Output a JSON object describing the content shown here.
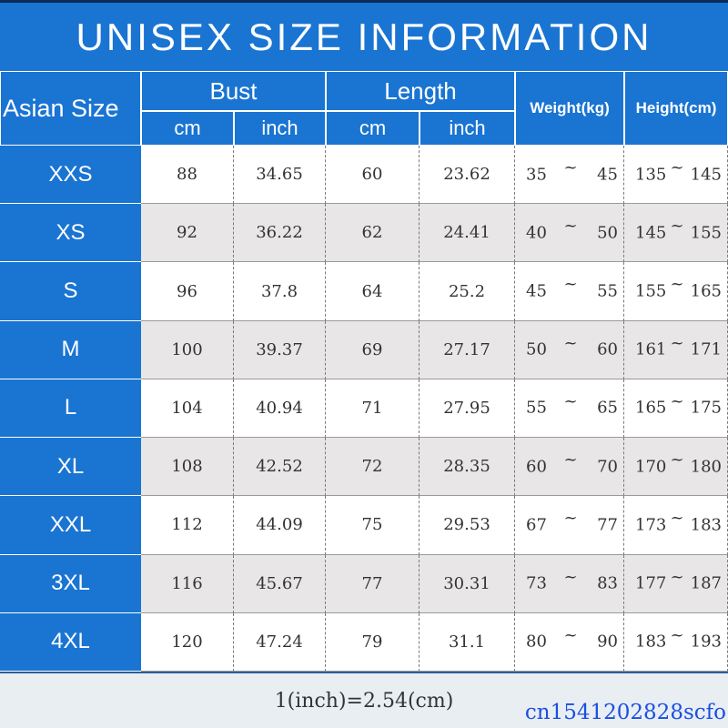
{
  "header": {
    "title": "UNISEX SIZE INFORMATION"
  },
  "table": {
    "size_header": "Asian Size",
    "groups": [
      {
        "label": "Bust",
        "units": [
          "cm",
          "inch"
        ]
      },
      {
        "label": "Length",
        "units": [
          "cm",
          "inch"
        ]
      }
    ],
    "weight_header": "Weight(kg)",
    "height_header": "Height(cm)",
    "range_separator": "~",
    "rows": [
      {
        "size": "XXS",
        "bust": [
          "88",
          "34.65"
        ],
        "length": [
          "60",
          "23.62"
        ],
        "weight": [
          "35",
          "45"
        ],
        "height": [
          "135",
          "145"
        ]
      },
      {
        "size": "XS",
        "bust": [
          "92",
          "36.22"
        ],
        "length": [
          "62",
          "24.41"
        ],
        "weight": [
          "40",
          "50"
        ],
        "height": [
          "145",
          "155"
        ]
      },
      {
        "size": "S",
        "bust": [
          "96",
          "37.8"
        ],
        "length": [
          "64",
          "25.2"
        ],
        "weight": [
          "45",
          "55"
        ],
        "height": [
          "155",
          "165"
        ]
      },
      {
        "size": "M",
        "bust": [
          "100",
          "39.37"
        ],
        "length": [
          "69",
          "27.17"
        ],
        "weight": [
          "50",
          "60"
        ],
        "height": [
          "161",
          "171"
        ]
      },
      {
        "size": "L",
        "bust": [
          "104",
          "40.94"
        ],
        "length": [
          "71",
          "27.95"
        ],
        "weight": [
          "55",
          "65"
        ],
        "height": [
          "165",
          "175"
        ]
      },
      {
        "size": "XL",
        "bust": [
          "108",
          "42.52"
        ],
        "length": [
          "72",
          "28.35"
        ],
        "weight": [
          "60",
          "70"
        ],
        "height": [
          "170",
          "180"
        ]
      },
      {
        "size": "XXL",
        "bust": [
          "112",
          "44.09"
        ],
        "length": [
          "75",
          "29.53"
        ],
        "weight": [
          "67",
          "77"
        ],
        "height": [
          "173",
          "183"
        ]
      },
      {
        "size": "3XL",
        "bust": [
          "116",
          "45.67"
        ],
        "length": [
          "77",
          "30.31"
        ],
        "weight": [
          "73",
          "83"
        ],
        "height": [
          "177",
          "187"
        ]
      },
      {
        "size": "4XL",
        "bust": [
          "120",
          "47.24"
        ],
        "length": [
          "79",
          "31.1"
        ],
        "weight": [
          "80",
          "90"
        ],
        "height": [
          "183",
          "193"
        ]
      }
    ]
  },
  "footer": {
    "note": "1(inch)=2.54(cm)"
  },
  "watermark": "cn1541202828scfo"
}
